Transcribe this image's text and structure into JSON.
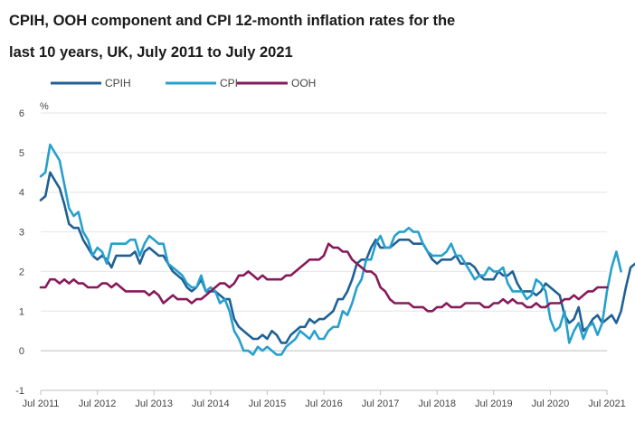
{
  "title_line1": "CPIH, OOH component and CPI 12-month inflation rates for the",
  "title_line2": "last 10 years, UK, July 2011 to July 2021",
  "chart_data": {
    "type": "line",
    "title": "CPIH, OOH component and CPI 12-month inflation rates for the last 10 years, UK, July 2011 to July 2021",
    "xlabel": "",
    "ylabel": "%",
    "ylim": [
      -1,
      6
    ],
    "yticks": [
      -1,
      0,
      1,
      2,
      3,
      4,
      5,
      6
    ],
    "xticks": [
      "Jul 2011",
      "Jul 2012",
      "Jul 2013",
      "Jul 2014",
      "Jul 2015",
      "Jul 2016",
      "Jul 2017",
      "Jul 2018",
      "Jul 2019",
      "Jul 2020",
      "Jul 2021"
    ],
    "legend_position": "top-left",
    "x_start": "Jul 2011",
    "x_end": "Jul 2021",
    "series": [
      {
        "name": "CPIH",
        "color": "#206095",
        "values": [
          3.8,
          3.9,
          4.5,
          4.3,
          4.1,
          3.7,
          3.2,
          3.1,
          3.1,
          2.8,
          2.6,
          2.4,
          2.3,
          2.4,
          2.3,
          2.1,
          2.4,
          2.4,
          2.4,
          2.4,
          2.5,
          2.2,
          2.5,
          2.6,
          2.5,
          2.4,
          2.4,
          2.2,
          2.0,
          1.9,
          1.8,
          1.6,
          1.5,
          1.6,
          1.8,
          1.5,
          1.5,
          1.5,
          1.4,
          1.3,
          1.3,
          0.8,
          0.6,
          0.5,
          0.4,
          0.3,
          0.3,
          0.4,
          0.3,
          0.5,
          0.4,
          0.2,
          0.2,
          0.4,
          0.5,
          0.6,
          0.6,
          0.8,
          0.7,
          0.8,
          0.8,
          0.9,
          1.0,
          1.3,
          1.3,
          1.5,
          1.8,
          2.2,
          2.3,
          2.3,
          2.6,
          2.8,
          2.6,
          2.6,
          2.6,
          2.7,
          2.8,
          2.8,
          2.8,
          2.7,
          2.7,
          2.7,
          2.5,
          2.3,
          2.2,
          2.3,
          2.3,
          2.3,
          2.4,
          2.2,
          2.2,
          2.2,
          2.1,
          1.9,
          1.8,
          1.8,
          1.8,
          2.0,
          1.9,
          1.9,
          2.0,
          1.7,
          1.5,
          1.5,
          1.5,
          1.4,
          1.5,
          1.7,
          1.6,
          1.5,
          1.4,
          0.9,
          0.7,
          0.8,
          1.1,
          0.5,
          0.6,
          0.8,
          0.9,
          0.7,
          0.8,
          0.9,
          0.7,
          1.0,
          1.6,
          2.1,
          2.2,
          2.1
        ]
      },
      {
        "name": "CPI",
        "color": "#27a0cc",
        "values": [
          4.4,
          4.5,
          5.2,
          5.0,
          4.8,
          4.2,
          3.6,
          3.4,
          3.5,
          3.0,
          2.8,
          2.4,
          2.6,
          2.5,
          2.2,
          2.7,
          2.7,
          2.7,
          2.7,
          2.8,
          2.8,
          2.4,
          2.7,
          2.9,
          2.8,
          2.7,
          2.7,
          2.2,
          2.1,
          2.0,
          1.9,
          1.7,
          1.6,
          1.6,
          1.9,
          1.5,
          1.6,
          1.5,
          1.2,
          1.3,
          1.0,
          0.5,
          0.3,
          0.0,
          0.0,
          -0.1,
          0.1,
          0.0,
          0.1,
          0.0,
          -0.1,
          -0.1,
          0.1,
          0.2,
          0.3,
          0.5,
          0.4,
          0.3,
          0.5,
          0.3,
          0.3,
          0.5,
          0.6,
          0.6,
          1.0,
          0.9,
          1.2,
          1.6,
          1.8,
          2.3,
          2.3,
          2.7,
          2.9,
          2.6,
          2.6,
          2.9,
          3.0,
          3.0,
          3.1,
          3.0,
          3.0,
          2.7,
          2.5,
          2.4,
          2.4,
          2.4,
          2.5,
          2.7,
          2.4,
          2.4,
          2.2,
          2.0,
          1.8,
          1.9,
          1.9,
          2.1,
          2.0,
          2.0,
          2.1,
          1.7,
          1.5,
          1.5,
          1.5,
          1.3,
          1.4,
          1.8,
          1.7,
          1.5,
          0.8,
          0.5,
          0.6,
          1.0,
          0.2,
          0.5,
          0.7,
          0.3,
          0.6,
          0.7,
          0.4,
          0.7,
          1.5,
          2.1,
          2.5,
          2.0
        ]
      },
      {
        "name": "OOH",
        "color": "#871a5b",
        "values": [
          1.6,
          1.6,
          1.8,
          1.8,
          1.7,
          1.8,
          1.7,
          1.8,
          1.7,
          1.7,
          1.6,
          1.6,
          1.6,
          1.7,
          1.7,
          1.6,
          1.7,
          1.6,
          1.5,
          1.5,
          1.5,
          1.5,
          1.5,
          1.4,
          1.5,
          1.4,
          1.2,
          1.3,
          1.4,
          1.3,
          1.3,
          1.3,
          1.2,
          1.3,
          1.3,
          1.4,
          1.5,
          1.6,
          1.7,
          1.7,
          1.6,
          1.7,
          1.9,
          1.9,
          2.0,
          1.9,
          1.8,
          1.9,
          1.8,
          1.8,
          1.8,
          1.8,
          1.9,
          1.9,
          2.0,
          2.1,
          2.2,
          2.3,
          2.3,
          2.3,
          2.4,
          2.7,
          2.6,
          2.6,
          2.5,
          2.5,
          2.3,
          2.2,
          2.1,
          2.0,
          2.0,
          1.9,
          1.6,
          1.5,
          1.3,
          1.2,
          1.2,
          1.2,
          1.2,
          1.1,
          1.1,
          1.1,
          1.0,
          1.0,
          1.1,
          1.1,
          1.2,
          1.1,
          1.1,
          1.1,
          1.2,
          1.2,
          1.2,
          1.2,
          1.1,
          1.1,
          1.2,
          1.2,
          1.3,
          1.2,
          1.3,
          1.2,
          1.2,
          1.1,
          1.1,
          1.2,
          1.1,
          1.1,
          1.2,
          1.2,
          1.2,
          1.3,
          1.3,
          1.4,
          1.3,
          1.4,
          1.5,
          1.5,
          1.6,
          1.6,
          1.6
        ]
      }
    ]
  }
}
